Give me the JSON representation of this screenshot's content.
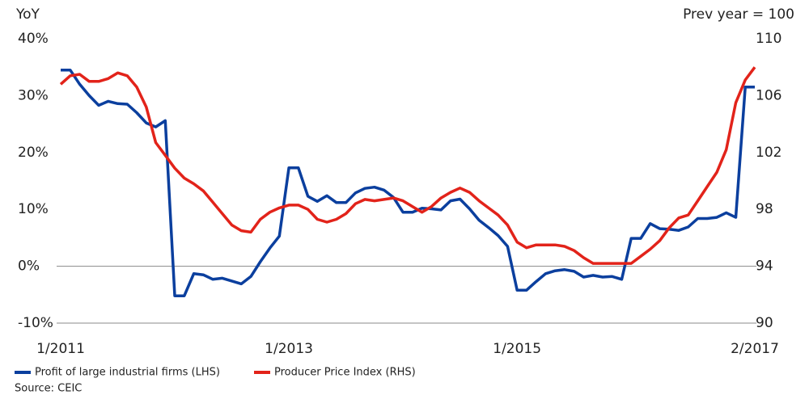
{
  "chart_data": {
    "type": "line",
    "y_label": "YoY",
    "y2_label": "Prev year = 100",
    "source": "Source: CEIC",
    "x": [
      "1/2011",
      "2/2011",
      "3/2011",
      "4/2011",
      "5/2011",
      "6/2011",
      "7/2011",
      "8/2011",
      "9/2011",
      "10/2011",
      "11/2011",
      "12/2011",
      "1/2012",
      "2/2012",
      "3/2012",
      "4/2012",
      "5/2012",
      "6/2012",
      "7/2012",
      "8/2012",
      "9/2012",
      "10/2012",
      "11/2012",
      "12/2012",
      "1/2013",
      "2/2013",
      "3/2013",
      "4/2013",
      "5/2013",
      "6/2013",
      "7/2013",
      "8/2013",
      "9/2013",
      "10/2013",
      "11/2013",
      "12/2013",
      "1/2014",
      "2/2014",
      "3/2014",
      "4/2014",
      "5/2014",
      "6/2014",
      "7/2014",
      "8/2014",
      "9/2014",
      "10/2014",
      "11/2014",
      "12/2014",
      "1/2015",
      "2/2015",
      "3/2015",
      "4/2015",
      "5/2015",
      "6/2015",
      "7/2015",
      "8/2015",
      "9/2015",
      "10/2015",
      "11/2015",
      "12/2015",
      "1/2016",
      "2/2016",
      "3/2016",
      "4/2016",
      "5/2016",
      "6/2016",
      "7/2016",
      "8/2016",
      "9/2016",
      "10/2016",
      "11/2016",
      "12/2016",
      "1/2017",
      "2/2017"
    ],
    "xticks": [
      "1/2011",
      "1/2013",
      "1/2015",
      "2/2017"
    ],
    "ylim": [
      -10,
      40
    ],
    "yticks": [
      {
        "value": -10,
        "label": "-10%"
      },
      {
        "value": 0,
        "label": "0%"
      },
      {
        "value": 10,
        "label": "10%"
      },
      {
        "value": 20,
        "label": "20%"
      },
      {
        "value": 30,
        "label": "30%"
      },
      {
        "value": 40,
        "label": "40%"
      }
    ],
    "y2lim": [
      90,
      110
    ],
    "y2ticks": [
      90,
      94,
      98,
      102,
      106,
      110
    ],
    "series": [
      {
        "name": "Profit of large industrial firms (LHS)",
        "color": "#0b3f9e",
        "values": [
          34.5,
          34.5,
          32,
          30,
          28.3,
          29,
          28.6,
          28.5,
          27,
          25.2,
          24.5,
          25.6,
          -5.2,
          -5.2,
          -1.3,
          -1.5,
          -2.3,
          -2.1,
          -2.6,
          -3.1,
          -1.8,
          0.8,
          3.2,
          5.3,
          17.3,
          17.3,
          12.3,
          11.4,
          12.4,
          11.2,
          11.2,
          12.9,
          13.7,
          13.9,
          13.4,
          12.1,
          9.5,
          9.5,
          10.2,
          10.1,
          9.9,
          11.5,
          11.8,
          10.1,
          8.1,
          6.8,
          5.4,
          3.5,
          -4.2,
          -4.2,
          -2.7,
          -1.3,
          -0.8,
          -0.6,
          -0.9,
          -1.9,
          -1.6,
          -1.9,
          -1.8,
          -2.3,
          4.9,
          4.9,
          7.5,
          6.6,
          6.5,
          6.3,
          6.9,
          8.4,
          8.4,
          8.6,
          9.4,
          8.6,
          31.5,
          31.5
        ]
      },
      {
        "name": "Producer Price Index (RHS)",
        "color": "#e2231a",
        "axis": "y2",
        "values": [
          106.8,
          107.4,
          107.5,
          107,
          107,
          107.2,
          107.6,
          107.4,
          106.6,
          105.2,
          102.7,
          101.8,
          100.9,
          100.2,
          99.8,
          99.3,
          98.5,
          97.7,
          96.9,
          96.5,
          96.4,
          97.3,
          97.8,
          98.1,
          98.3,
          98.3,
          98.0,
          97.3,
          97.1,
          97.3,
          97.7,
          98.4,
          98.7,
          98.6,
          98.7,
          98.8,
          98.6,
          98.2,
          97.8,
          98.2,
          98.8,
          99.2,
          99.5,
          99.2,
          98.6,
          98.1,
          97.6,
          96.9,
          95.7,
          95.3,
          95.5,
          95.5,
          95.5,
          95.4,
          95.1,
          94.6,
          94.2,
          94.2,
          94.2,
          94.2,
          94.2,
          94.7,
          95.2,
          95.8,
          96.7,
          97.4,
          97.6,
          98.6,
          99.6,
          100.6,
          102.2,
          105.5,
          107.1,
          108.0
        ]
      }
    ]
  }
}
